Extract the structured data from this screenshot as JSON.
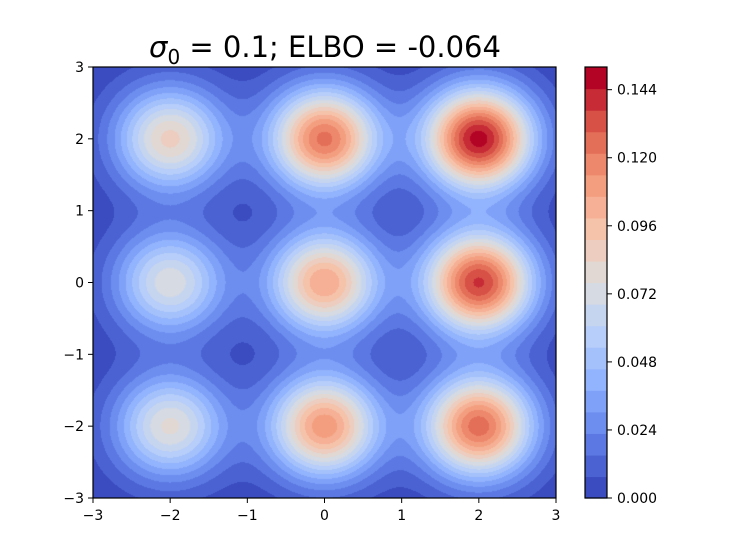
{
  "chart_data": {
    "type": "heatmap",
    "subtype": "filled-contour",
    "title": {
      "symbol": "σ",
      "subscript": "0",
      "rest": " = 0.1; ELBO = -0.064"
    },
    "xlabel": "",
    "ylabel": "",
    "xlim": [
      -3,
      3
    ],
    "ylim": [
      -3,
      3
    ],
    "x_ticks": [
      "−3",
      "−2",
      "−1",
      "0",
      "1",
      "2",
      "3"
    ],
    "y_ticks": [
      "−3",
      "−2",
      "−1",
      "0",
      "1",
      "2",
      "3"
    ],
    "grid": false,
    "colormap": "coolwarm",
    "levels": 20,
    "value_range": [
      0.0,
      0.152
    ],
    "colorbar_ticks": [
      "0.000",
      "0.024",
      "0.048",
      "0.072",
      "0.096",
      "0.120",
      "0.144"
    ],
    "mixture_components": {
      "sigma": 0.5,
      "centers": [
        {
          "x": -2,
          "y": 2,
          "peak": 0.086
        },
        {
          "x": 0,
          "y": 2,
          "peak": 0.124
        },
        {
          "x": 2,
          "y": 2,
          "peak": 0.148
        },
        {
          "x": -2,
          "y": 0,
          "peak": 0.074
        },
        {
          "x": 0,
          "y": 0,
          "peak": 0.106
        },
        {
          "x": 2,
          "y": 0,
          "peak": 0.138
        },
        {
          "x": -2,
          "y": -2,
          "peak": 0.078
        },
        {
          "x": 0,
          "y": -2,
          "peak": 0.112
        },
        {
          "x": 2,
          "y": -2,
          "peak": 0.126
        }
      ]
    }
  }
}
